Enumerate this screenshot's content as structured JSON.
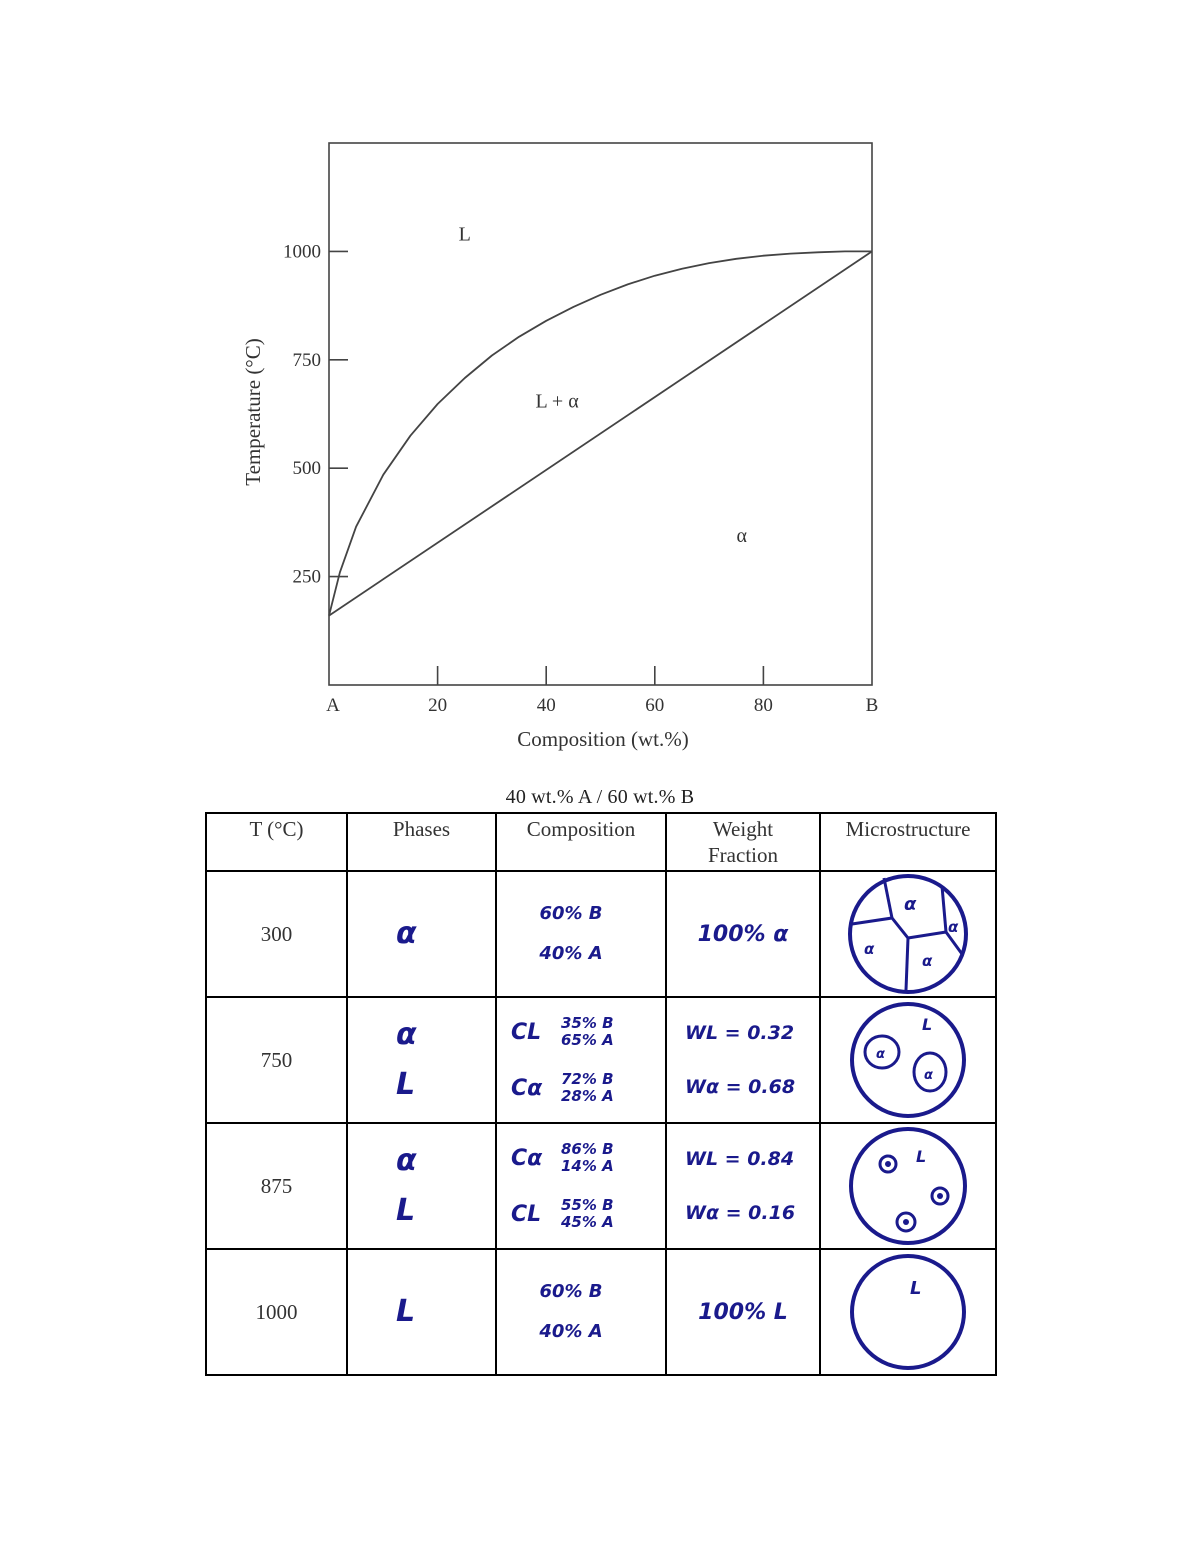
{
  "chart_data": {
    "type": "line",
    "title": "",
    "xlabel": "Composition (wt.%)",
    "ylabel": "Temperature (°C)",
    "xlim": [
      0,
      100
    ],
    "ylim": [
      0,
      1250
    ],
    "x_ticks": [
      {
        "value": 0,
        "label": "A"
      },
      {
        "value": 20,
        "label": "20"
      },
      {
        "value": 40,
        "label": "40"
      },
      {
        "value": 60,
        "label": "60"
      },
      {
        "value": 80,
        "label": "80"
      },
      {
        "value": 100,
        "label": "B"
      }
    ],
    "y_ticks": [
      {
        "value": 250,
        "label": "250"
      },
      {
        "value": 500,
        "label": "500"
      },
      {
        "value": 750,
        "label": "750"
      },
      {
        "value": 1000,
        "label": "1000"
      }
    ],
    "series": [
      {
        "x": [
          0,
          2,
          5,
          10,
          15,
          20,
          25,
          30,
          35,
          40,
          45,
          50,
          55,
          60,
          65,
          70,
          75,
          80,
          85,
          90,
          95,
          100
        ],
        "y": [
          160,
          260,
          365,
          485,
          575,
          648,
          708,
          760,
          803,
          840,
          872,
          900,
          924,
          944,
          960,
          973,
          983,
          990,
          995,
          998,
          1000,
          1000
        ]
      },
      {
        "x": [
          0,
          100
        ],
        "y": [
          160,
          1000
        ]
      }
    ],
    "regions": [
      {
        "label": "L",
        "x": 25,
        "y": 1025
      },
      {
        "label": "L + α",
        "x": 42,
        "y": 640
      },
      {
        "label": "α",
        "x": 76,
        "y": 330
      }
    ]
  },
  "table": {
    "caption": "40 wt.% A / 60 wt.% B",
    "headers": [
      "T (°C)",
      "Phases",
      "Composition",
      "Weight Fraction",
      "Microstructure"
    ],
    "rows": [
      {
        "temp": "300",
        "phases": [
          "α"
        ],
        "composition_simple": [
          "60% B",
          "40% A"
        ],
        "weight_simple": "100% α",
        "micro_labels": [
          "α",
          "α",
          "α",
          "α"
        ]
      },
      {
        "temp": "750",
        "phases": [
          "α",
          "L"
        ],
        "composition": [
          {
            "symbol": "CL",
            "values": [
              "35% B",
              "65% A"
            ]
          },
          {
            "symbol": "Cα",
            "values": [
              "72% B",
              "28% A"
            ]
          }
        ],
        "weights": [
          "WL = 0.32",
          "Wα = 0.68"
        ],
        "micro_labels": [
          "L",
          "α",
          "α"
        ]
      },
      {
        "temp": "875",
        "phases": [
          "α",
          "L"
        ],
        "composition": [
          {
            "symbol": "Cα",
            "values": [
              "86% B",
              "14% A"
            ]
          },
          {
            "symbol": "CL",
            "values": [
              "55% B",
              "45% A"
            ]
          }
        ],
        "weights": [
          "WL = 0.84",
          "Wα = 0.16"
        ],
        "micro_labels": [
          "L"
        ]
      },
      {
        "temp": "1000",
        "phases": [
          "L"
        ],
        "composition_simple": [
          "60% B",
          "40% A"
        ],
        "weight_simple": "100% L",
        "micro_labels": [
          "L"
        ]
      }
    ]
  }
}
